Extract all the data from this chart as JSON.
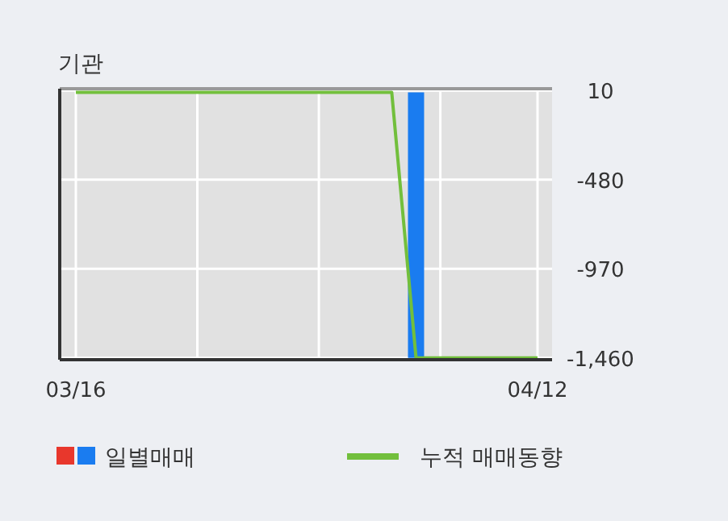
{
  "chart_data": {
    "type": "bar",
    "title": "기관",
    "categories": [
      "03/16",
      null,
      null,
      null,
      null,
      null,
      null,
      null,
      null,
      null,
      null,
      null,
      null,
      null,
      null,
      null,
      null,
      null,
      null,
      "04/12"
    ],
    "series": [
      {
        "name": "일별매매",
        "color": "#1a7cf0",
        "values": [
          0,
          0,
          0,
          0,
          0,
          0,
          0,
          0,
          0,
          0,
          0,
          0,
          0,
          0,
          -1460,
          0,
          0,
          0,
          0,
          0
        ]
      },
      {
        "name": "누적 매매동향",
        "type": "line",
        "color": "#72bf3c",
        "values": [
          0,
          0,
          0,
          0,
          0,
          0,
          0,
          0,
          0,
          0,
          0,
          0,
          0,
          0,
          -1460,
          -1460,
          -1460,
          -1460,
          -1460,
          -1460
        ]
      }
    ],
    "ylim": [
      -1470,
      20
    ],
    "yticks": [
      10,
      -480,
      -970,
      {
        "value": -1460,
        "label": "-1,460"
      }
    ],
    "grid": true,
    "legend": "bottom"
  }
}
